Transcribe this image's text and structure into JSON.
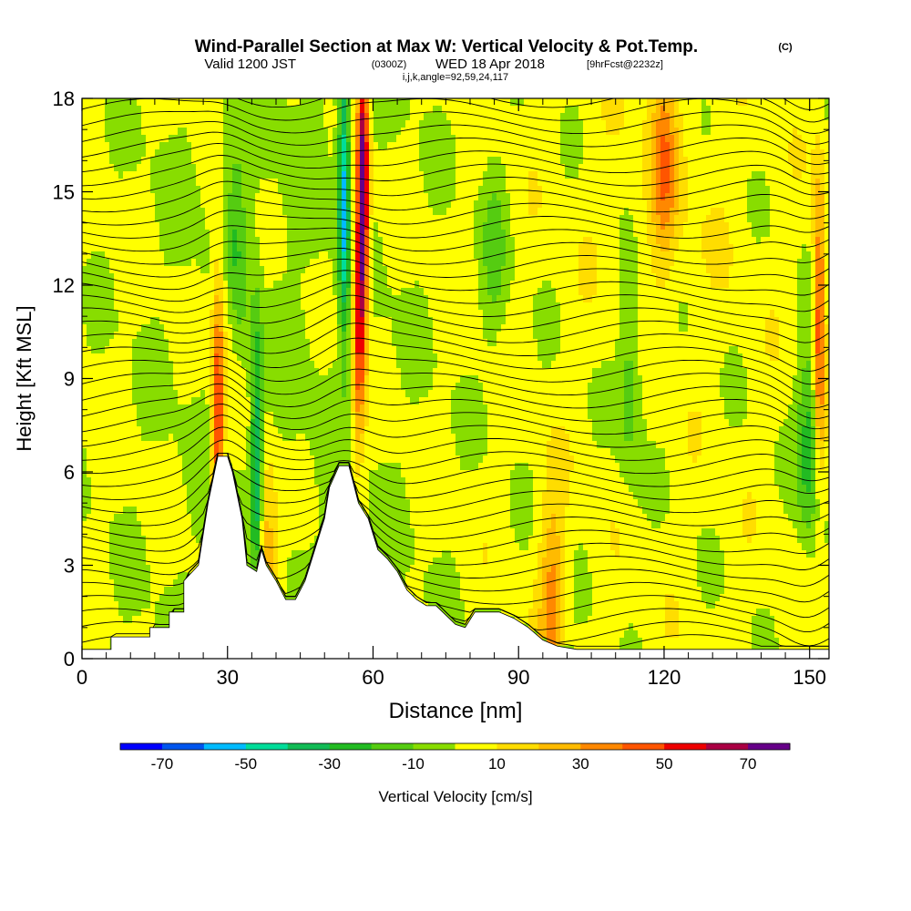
{
  "title": {
    "main": "Wind-Parallel Section at Max W: Vertical Velocity & Pot.Temp.",
    "copyright": "(C)",
    "valid_prefix": "Valid 1200 JST",
    "valid_utc": "(0300Z)",
    "valid_date": "WED 18 Apr 2018",
    "forecast": "[9hrFcst@2232z]",
    "indices": "i,j,k,angle=92,59,24,117"
  },
  "chart_data": {
    "type": "heatmap",
    "xlabel": "Distance [nm]",
    "ylabel": "Height [Kft MSL]",
    "xlim": [
      0,
      154
    ],
    "ylim": [
      0,
      18
    ],
    "x_ticks": [
      0,
      30,
      60,
      90,
      120,
      150
    ],
    "y_ticks": [
      0,
      3,
      6,
      9,
      12,
      15,
      18
    ],
    "colorbar": {
      "label": "Vertical Velocity [cm/s]",
      "tick_labels": [
        "-70",
        "-50",
        "-30",
        "-10",
        "10",
        "30",
        "50",
        "70"
      ],
      "tick_values": [
        -70,
        -50,
        -30,
        -10,
        10,
        30,
        50,
        70
      ],
      "bounds": [
        -80,
        -70,
        -60,
        -50,
        -40,
        -30,
        -20,
        -10,
        0,
        10,
        20,
        30,
        40,
        50,
        60,
        70,
        80
      ],
      "colors": [
        "#0000ff",
        "#0055ee",
        "#00bbff",
        "#00dd99",
        "#11bb55",
        "#22bb22",
        "#55cc11",
        "#88dd00",
        "#ffff00",
        "#ffdd00",
        "#ffbb00",
        "#ff8800",
        "#ff5500",
        "#ee0000",
        "#aa0044",
        "#660088"
      ]
    },
    "terrain": [
      [
        0,
        0.3
      ],
      [
        6,
        0.3
      ],
      [
        6,
        0.7
      ],
      [
        14,
        0.7
      ],
      [
        14,
        1
      ],
      [
        18,
        1
      ],
      [
        18,
        1.5
      ],
      [
        21,
        1.5
      ],
      [
        21,
        2.5
      ],
      [
        24,
        3
      ],
      [
        26,
        5
      ],
      [
        28,
        6.5
      ],
      [
        30,
        6.5
      ],
      [
        31,
        6
      ],
      [
        33,
        4.5
      ],
      [
        34,
        3
      ],
      [
        36,
        2.8
      ],
      [
        37,
        3.5
      ],
      [
        38,
        3
      ],
      [
        40,
        2.5
      ],
      [
        42,
        1.9
      ],
      [
        44,
        1.9
      ],
      [
        46,
        2.5
      ],
      [
        48,
        3.5
      ],
      [
        50,
        4.5
      ],
      [
        51,
        5.5
      ],
      [
        53,
        6.2
      ],
      [
        55,
        6.2
      ],
      [
        57,
        5
      ],
      [
        59,
        4.5
      ],
      [
        61,
        3.5
      ],
      [
        63,
        3.2
      ],
      [
        65,
        2.8
      ],
      [
        67,
        2.2
      ],
      [
        69,
        1.9
      ],
      [
        71,
        1.7
      ],
      [
        73,
        1.7
      ],
      [
        75,
        1.4
      ],
      [
        77,
        1.1
      ],
      [
        79,
        1
      ],
      [
        81,
        1.5
      ],
      [
        86,
        1.5
      ],
      [
        89,
        1.3
      ],
      [
        92,
        1
      ],
      [
        95,
        0.6
      ],
      [
        98,
        0.4
      ],
      [
        102,
        0.3
      ],
      [
        154,
        0.3
      ]
    ],
    "updraft_features": [
      {
        "x": 28,
        "z": 7.0,
        "w": 55
      },
      {
        "x": 30,
        "z": 12.0,
        "w": 30
      },
      {
        "x": 58,
        "z": 15.0,
        "w": 75
      },
      {
        "x": 57,
        "z": 11.0,
        "w": 45
      },
      {
        "x": 38,
        "z": 3.0,
        "w": 35
      },
      {
        "x": 97,
        "z": 2.0,
        "w": 30
      },
      {
        "x": 120,
        "z": 16.0,
        "w": 30
      },
      {
        "x": 152,
        "z": 10.5,
        "w": 50
      }
    ],
    "downdraft_features": [
      {
        "x": 54,
        "z": 15.0,
        "w": -55
      },
      {
        "x": 36,
        "z": 6.0,
        "w": -45
      },
      {
        "x": 31,
        "z": 13.0,
        "w": -35
      },
      {
        "x": 113,
        "z": 9.0,
        "w": -20
      },
      {
        "x": 150,
        "z": 7.0,
        "w": -30
      },
      {
        "x": 85,
        "z": 13.0,
        "w": -15
      }
    ],
    "isentropes": {
      "field": "Potential temperature",
      "line_color": "#000000",
      "base_spacing_kft": 0.42
    }
  }
}
